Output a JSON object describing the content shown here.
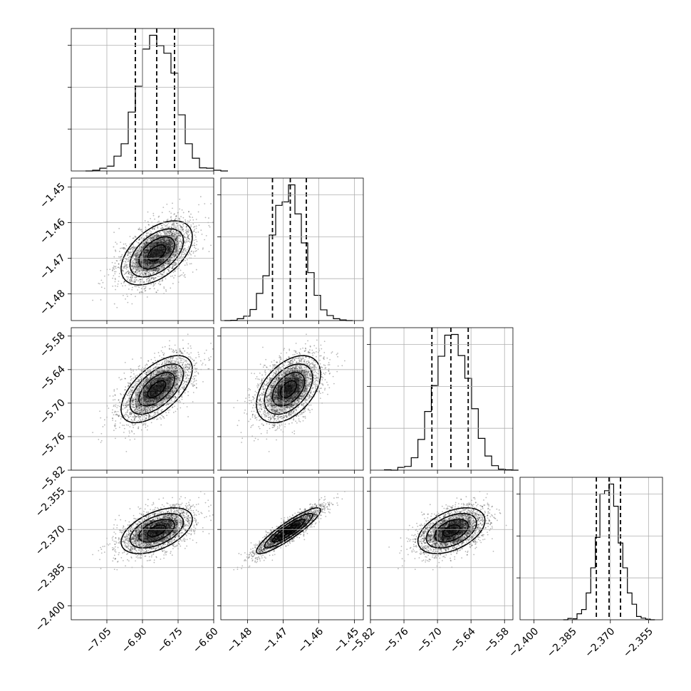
{
  "chart_data": {
    "type": "corner",
    "grid": true,
    "colors": {
      "lines": "#000000",
      "grid": "#b0b0b0",
      "density": "#000000"
    },
    "parameters": [
      {
        "range": [
          -7.2,
          -6.6
        ],
        "ticks": [
          -7.05,
          -6.9,
          -6.75,
          -6.6
        ],
        "tick_labels": [
          "−7.05",
          "−6.90",
          "−6.75",
          "−6.60"
        ],
        "mean": -6.84,
        "sd": 0.075,
        "quantiles": [
          -6.93,
          -6.84,
          -6.765
        ]
      },
      {
        "range": [
          -1.4875,
          -1.4475
        ],
        "ticks": [
          -1.48,
          -1.47,
          -1.46,
          -1.45
        ],
        "tick_labels": [
          "−1.48",
          "−1.47",
          "−1.46",
          "−1.45"
        ],
        "mean": -1.4685,
        "sd": 0.0045,
        "quantiles": [
          -1.473,
          -1.468,
          -1.4635
        ]
      },
      {
        "range": [
          -5.82,
          -5.565
        ],
        "ticks": [
          -5.82,
          -5.76,
          -5.7,
          -5.64,
          -5.58
        ],
        "tick_labels": [
          "−5.82",
          "−5.76",
          "−5.70",
          "−5.64",
          "−5.58"
        ],
        "mean": -5.675,
        "sd": 0.03,
        "quantiles": [
          -5.71,
          -5.676,
          -5.645
        ]
      },
      {
        "range": [
          -2.4055,
          -2.3495
        ],
        "ticks": [
          -2.4,
          -2.385,
          -2.37,
          -2.355
        ],
        "tick_labels": [
          "−2.400",
          "−2.385",
          "−2.370",
          "−2.355"
        ],
        "mean": -2.3705,
        "sd": 0.0045,
        "quantiles": [
          -2.3755,
          -2.3705,
          -2.366
        ]
      }
    ],
    "correlations": [
      [
        1.0,
        0.5,
        0.6,
        0.5
      ],
      [
        0.5,
        1.0,
        0.45,
        0.9
      ],
      [
        0.6,
        0.45,
        1.0,
        0.45
      ],
      [
        0.5,
        0.9,
        0.45,
        1.0
      ]
    ],
    "histogram_bins": 20,
    "contour_levels_sigma": [
      0.5,
      1.0,
      1.5,
      2.0
    ]
  }
}
